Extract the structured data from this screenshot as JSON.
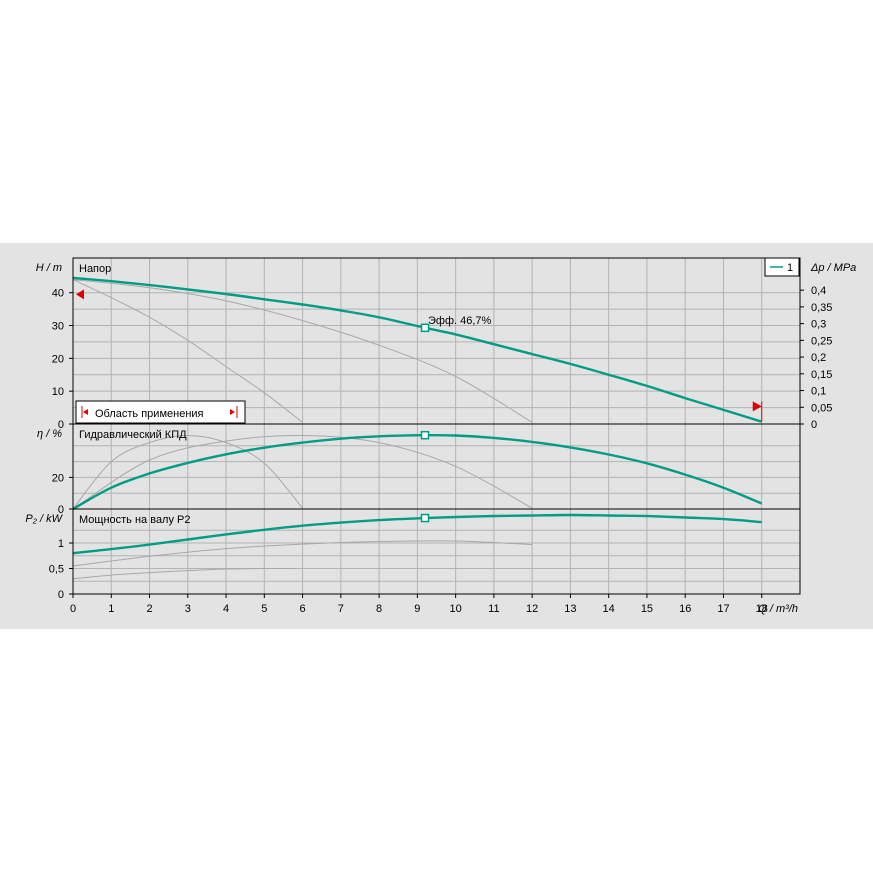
{
  "chart_data": {
    "type": "line",
    "x_axis": {
      "label": "Q / m³/h",
      "range": [
        0,
        19
      ],
      "ticks": [
        "0",
        "1",
        "2",
        "3",
        "4",
        "5",
        "6",
        "7",
        "8",
        "9",
        "10",
        "11",
        "12",
        "13",
        "14",
        "15",
        "16",
        "17",
        "18"
      ]
    },
    "legend": {
      "entries": [
        "1"
      ],
      "placement": "top-right"
    },
    "accent_color": "#009c86",
    "panels": [
      {
        "id": "head",
        "title": "Напор",
        "ylabel": "H / m",
        "ylim": [
          0,
          46
        ],
        "yticks": [
          "0",
          "10",
          "20",
          "30",
          "40"
        ],
        "right_axis": {
          "label": "Δp / MPa",
          "ticks": [
            "0",
            "0,05",
            "0,1",
            "0,15",
            "0,2",
            "0,25",
            "0,3",
            "0,35",
            "0,4"
          ]
        },
        "series": [
          {
            "name": "1",
            "x": [
              0,
              1,
              2,
              3,
              4,
              5,
              6,
              7,
              8,
              9.2,
              10,
              11,
              12,
              13,
              14,
              15,
              16,
              17,
              18
            ],
            "y": [
              44.5,
              43.5,
              42.3,
              41.0,
              39.6,
              38.0,
              36.4,
              34.6,
              32.5,
              29.3,
              27.3,
              24.3,
              21.3,
              18.3,
              15.0,
              11.6,
              7.9,
              4.3,
              0.7
            ]
          }
        ],
        "ghost_series": [
          {
            "x": [
              0,
              1,
              2,
              3,
              4,
              5,
              6
            ],
            "y": [
              44,
              38.5,
              32.5,
              25.5,
              17.5,
              9.5,
              0.5
            ]
          },
          {
            "x": [
              0,
              2,
              4,
              6,
              8,
              10,
              12
            ],
            "y": [
              44,
              41.5,
              37.5,
              31.5,
              24,
              14.5,
              0.5
            ]
          }
        ],
        "annotations": {
          "bep_label": "Эфф. 46,7%",
          "range_label": "Область применения",
          "range_marker_y": 39.5,
          "range_marker_x": 18
        }
      },
      {
        "id": "efficiency",
        "title": "Гидравлический КПД",
        "ylabel": "η / %",
        "ylim": [
          0,
          50
        ],
        "yticks": [
          "0",
          "20"
        ],
        "series": [
          {
            "name": "1",
            "x": [
              0,
              1,
              2,
              3,
              4,
              5,
              6,
              7,
              8,
              9.2,
              10,
              11,
              12,
              13,
              14,
              15,
              16,
              17,
              18
            ],
            "y": [
              0,
              13.5,
              22.5,
              29.2,
              34.6,
              38.8,
              42.0,
              44.5,
              46.0,
              46.7,
              46.5,
              45.0,
              42.5,
              39.0,
              34.5,
              28.9,
              21.8,
              13.5,
              3.5
            ]
          }
        ],
        "ghost_series": [
          {
            "x": [
              0,
              1,
              2,
              3,
              4,
              5,
              6
            ],
            "y": [
              0,
              30,
              42,
              46.5,
              42,
              29,
              0.5
            ]
          },
          {
            "x": [
              0,
              2,
              4,
              6,
              8,
              10,
              12
            ],
            "y": [
              0,
              31,
              43,
              46.5,
              42,
              27,
              0.5
            ]
          }
        ]
      },
      {
        "id": "power",
        "title": "Мощность на валу P2",
        "ylabel": "P₂ / kW",
        "ylim": [
          0,
          1.55
        ],
        "yticks": [
          "0",
          "0,5",
          "1"
        ],
        "series": [
          {
            "name": "1",
            "x": [
              0,
              1,
              2,
              3,
              4,
              5,
              6,
              7,
              8,
              9.2,
              10,
              11,
              12,
              13,
              14,
              15,
              16,
              17,
              18
            ],
            "y": [
              0.8,
              0.88,
              0.97,
              1.07,
              1.17,
              1.26,
              1.34,
              1.4,
              1.45,
              1.49,
              1.51,
              1.53,
              1.54,
              1.55,
              1.54,
              1.53,
              1.5,
              1.47,
              1.41
            ]
          }
        ],
        "ghost_series": [
          {
            "x": [
              0,
              1,
              2,
              3,
              4,
              5,
              5.8
            ],
            "y": [
              0.3,
              0.37,
              0.42,
              0.46,
              0.49,
              0.5,
              0.5
            ]
          },
          {
            "x": [
              0,
              2,
              4,
              6,
              8,
              10,
              12
            ],
            "y": [
              0.55,
              0.74,
              0.89,
              0.98,
              1.03,
              1.04,
              0.97
            ]
          }
        ]
      }
    ],
    "operating_point": {
      "x": 9.2,
      "head": 29.3,
      "efficiency": 46.7,
      "power": 1.49
    }
  }
}
